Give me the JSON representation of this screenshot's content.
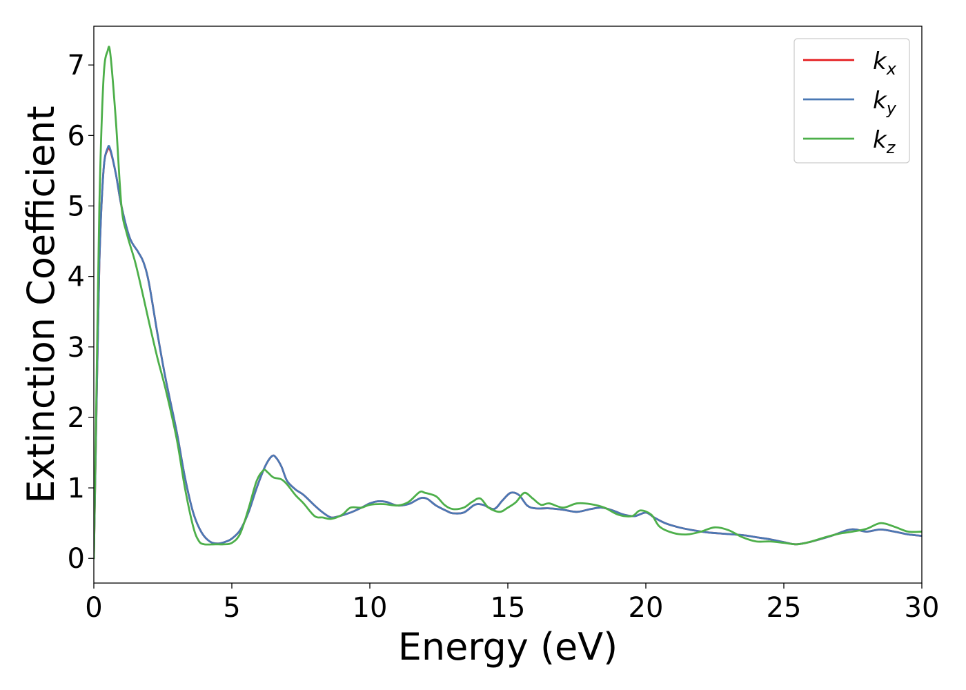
{
  "chart_data": {
    "type": "line",
    "xlabel": "Energy (eV)",
    "ylabel": "Extinction Coefficient",
    "xlim": [
      0,
      30
    ],
    "ylim": [
      -0.35,
      7.55
    ],
    "xticks": [
      0,
      5,
      10,
      15,
      20,
      25,
      30
    ],
    "yticks": [
      0,
      1,
      2,
      3,
      4,
      5,
      6,
      7
    ],
    "grid": false,
    "legend_position": "top-right",
    "series": [
      {
        "name": "k",
        "subscript": "x",
        "color": "#e41a1c",
        "points": [
          [
            0,
            0.0
          ],
          [
            0.1,
            2.2
          ],
          [
            0.2,
            4.2
          ],
          [
            0.35,
            5.5
          ],
          [
            0.5,
            5.8
          ],
          [
            0.6,
            5.78
          ],
          [
            0.8,
            5.45
          ],
          [
            1.0,
            5.0
          ],
          [
            1.3,
            4.55
          ],
          [
            1.6,
            4.35
          ],
          [
            1.8,
            4.2
          ],
          [
            2.0,
            3.9
          ],
          [
            2.3,
            3.2
          ],
          [
            2.6,
            2.55
          ],
          [
            3.0,
            1.8
          ],
          [
            3.3,
            1.15
          ],
          [
            3.6,
            0.65
          ],
          [
            3.9,
            0.37
          ],
          [
            4.2,
            0.24
          ],
          [
            4.5,
            0.21
          ],
          [
            4.8,
            0.24
          ],
          [
            5.0,
            0.28
          ],
          [
            5.3,
            0.4
          ],
          [
            5.6,
            0.65
          ],
          [
            5.9,
            1.0
          ],
          [
            6.2,
            1.3
          ],
          [
            6.45,
            1.45
          ],
          [
            6.6,
            1.43
          ],
          [
            6.8,
            1.3
          ],
          [
            7.0,
            1.1
          ],
          [
            7.3,
            0.98
          ],
          [
            7.6,
            0.9
          ],
          [
            8.0,
            0.75
          ],
          [
            8.3,
            0.65
          ],
          [
            8.6,
            0.58
          ],
          [
            8.9,
            0.6
          ],
          [
            9.3,
            0.65
          ],
          [
            9.7,
            0.72
          ],
          [
            10.0,
            0.78
          ],
          [
            10.3,
            0.81
          ],
          [
            10.6,
            0.8
          ],
          [
            11.0,
            0.75
          ],
          [
            11.4,
            0.77
          ],
          [
            11.7,
            0.83
          ],
          [
            11.9,
            0.86
          ],
          [
            12.1,
            0.84
          ],
          [
            12.4,
            0.75
          ],
          [
            12.8,
            0.67
          ],
          [
            13.0,
            0.64
          ],
          [
            13.4,
            0.65
          ],
          [
            13.8,
            0.76
          ],
          [
            14.1,
            0.76
          ],
          [
            14.5,
            0.7
          ],
          [
            14.8,
            0.82
          ],
          [
            15.1,
            0.93
          ],
          [
            15.4,
            0.9
          ],
          [
            15.7,
            0.75
          ],
          [
            16.0,
            0.71
          ],
          [
            16.5,
            0.71
          ],
          [
            17.0,
            0.69
          ],
          [
            17.5,
            0.66
          ],
          [
            18.0,
            0.7
          ],
          [
            18.4,
            0.72
          ],
          [
            18.8,
            0.68
          ],
          [
            19.2,
            0.62
          ],
          [
            19.6,
            0.6
          ],
          [
            20.0,
            0.65
          ],
          [
            20.3,
            0.58
          ],
          [
            20.7,
            0.5
          ],
          [
            21.2,
            0.44
          ],
          [
            21.7,
            0.4
          ],
          [
            22.2,
            0.37
          ],
          [
            22.8,
            0.35
          ],
          [
            23.5,
            0.33
          ],
          [
            24.0,
            0.3
          ],
          [
            24.5,
            0.27
          ],
          [
            25.0,
            0.23
          ],
          [
            25.4,
            0.2
          ],
          [
            25.8,
            0.22
          ],
          [
            26.3,
            0.27
          ],
          [
            26.8,
            0.33
          ],
          [
            27.3,
            0.4
          ],
          [
            27.6,
            0.41
          ],
          [
            28.0,
            0.38
          ],
          [
            28.5,
            0.41
          ],
          [
            29.0,
            0.38
          ],
          [
            29.5,
            0.34
          ],
          [
            30.0,
            0.32
          ]
        ]
      },
      {
        "name": "k",
        "subscript": "y",
        "color": "#4a78b4",
        "points": [
          [
            0,
            0.0
          ],
          [
            0.1,
            2.2
          ],
          [
            0.2,
            4.2
          ],
          [
            0.35,
            5.5
          ],
          [
            0.5,
            5.82
          ],
          [
            0.6,
            5.8
          ],
          [
            0.8,
            5.45
          ],
          [
            1.0,
            5.0
          ],
          [
            1.3,
            4.55
          ],
          [
            1.6,
            4.35
          ],
          [
            1.8,
            4.2
          ],
          [
            2.0,
            3.9
          ],
          [
            2.3,
            3.2
          ],
          [
            2.6,
            2.55
          ],
          [
            3.0,
            1.8
          ],
          [
            3.3,
            1.15
          ],
          [
            3.6,
            0.65
          ],
          [
            3.9,
            0.37
          ],
          [
            4.2,
            0.24
          ],
          [
            4.5,
            0.21
          ],
          [
            4.8,
            0.24
          ],
          [
            5.0,
            0.28
          ],
          [
            5.3,
            0.4
          ],
          [
            5.6,
            0.65
          ],
          [
            5.9,
            1.0
          ],
          [
            6.2,
            1.3
          ],
          [
            6.45,
            1.45
          ],
          [
            6.6,
            1.43
          ],
          [
            6.8,
            1.3
          ],
          [
            7.0,
            1.1
          ],
          [
            7.3,
            0.98
          ],
          [
            7.6,
            0.9
          ],
          [
            8.0,
            0.75
          ],
          [
            8.3,
            0.65
          ],
          [
            8.6,
            0.58
          ],
          [
            8.9,
            0.6
          ],
          [
            9.3,
            0.65
          ],
          [
            9.7,
            0.72
          ],
          [
            10.0,
            0.78
          ],
          [
            10.3,
            0.81
          ],
          [
            10.6,
            0.8
          ],
          [
            11.0,
            0.75
          ],
          [
            11.4,
            0.77
          ],
          [
            11.7,
            0.83
          ],
          [
            11.9,
            0.86
          ],
          [
            12.1,
            0.84
          ],
          [
            12.4,
            0.75
          ],
          [
            12.8,
            0.67
          ],
          [
            13.0,
            0.64
          ],
          [
            13.4,
            0.65
          ],
          [
            13.8,
            0.76
          ],
          [
            14.1,
            0.76
          ],
          [
            14.5,
            0.7
          ],
          [
            14.8,
            0.82
          ],
          [
            15.1,
            0.93
          ],
          [
            15.4,
            0.9
          ],
          [
            15.7,
            0.75
          ],
          [
            16.0,
            0.71
          ],
          [
            16.5,
            0.71
          ],
          [
            17.0,
            0.69
          ],
          [
            17.5,
            0.66
          ],
          [
            18.0,
            0.7
          ],
          [
            18.4,
            0.72
          ],
          [
            18.8,
            0.68
          ],
          [
            19.2,
            0.62
          ],
          [
            19.6,
            0.6
          ],
          [
            20.0,
            0.65
          ],
          [
            20.3,
            0.58
          ],
          [
            20.7,
            0.5
          ],
          [
            21.2,
            0.44
          ],
          [
            21.7,
            0.4
          ],
          [
            22.2,
            0.37
          ],
          [
            22.8,
            0.35
          ],
          [
            23.5,
            0.33
          ],
          [
            24.0,
            0.3
          ],
          [
            24.5,
            0.27
          ],
          [
            25.0,
            0.23
          ],
          [
            25.4,
            0.2
          ],
          [
            25.8,
            0.22
          ],
          [
            26.3,
            0.27
          ],
          [
            26.8,
            0.33
          ],
          [
            27.3,
            0.4
          ],
          [
            27.6,
            0.41
          ],
          [
            28.0,
            0.38
          ],
          [
            28.5,
            0.41
          ],
          [
            29.0,
            0.38
          ],
          [
            29.5,
            0.34
          ],
          [
            30.0,
            0.32
          ]
        ]
      },
      {
        "name": "k",
        "subscript": "z",
        "color": "#4daf4a",
        "points": [
          [
            0,
            0.0
          ],
          [
            0.1,
            2.5
          ],
          [
            0.2,
            5.0
          ],
          [
            0.35,
            6.8
          ],
          [
            0.5,
            7.2
          ],
          [
            0.6,
            7.15
          ],
          [
            0.8,
            6.2
          ],
          [
            1.0,
            5.0
          ],
          [
            1.2,
            4.6
          ],
          [
            1.5,
            4.2
          ],
          [
            1.8,
            3.7
          ],
          [
            2.0,
            3.35
          ],
          [
            2.3,
            2.85
          ],
          [
            2.6,
            2.4
          ],
          [
            3.0,
            1.7
          ],
          [
            3.3,
            1.0
          ],
          [
            3.6,
            0.45
          ],
          [
            3.8,
            0.25
          ],
          [
            4.0,
            0.2
          ],
          [
            4.4,
            0.2
          ],
          [
            4.7,
            0.2
          ],
          [
            5.0,
            0.22
          ],
          [
            5.3,
            0.35
          ],
          [
            5.6,
            0.7
          ],
          [
            5.9,
            1.1
          ],
          [
            6.15,
            1.25
          ],
          [
            6.3,
            1.22
          ],
          [
            6.5,
            1.15
          ],
          [
            6.8,
            1.12
          ],
          [
            7.0,
            1.05
          ],
          [
            7.3,
            0.9
          ],
          [
            7.6,
            0.78
          ],
          [
            8.0,
            0.6
          ],
          [
            8.3,
            0.58
          ],
          [
            8.6,
            0.56
          ],
          [
            9.0,
            0.62
          ],
          [
            9.3,
            0.72
          ],
          [
            9.7,
            0.72
          ],
          [
            10.0,
            0.76
          ],
          [
            10.5,
            0.77
          ],
          [
            11.0,
            0.75
          ],
          [
            11.4,
            0.8
          ],
          [
            11.8,
            0.94
          ],
          [
            12.0,
            0.93
          ],
          [
            12.4,
            0.88
          ],
          [
            12.7,
            0.76
          ],
          [
            13.0,
            0.7
          ],
          [
            13.4,
            0.72
          ],
          [
            13.7,
            0.8
          ],
          [
            14.0,
            0.85
          ],
          [
            14.3,
            0.72
          ],
          [
            14.7,
            0.66
          ],
          [
            15.0,
            0.72
          ],
          [
            15.3,
            0.8
          ],
          [
            15.6,
            0.93
          ],
          [
            15.9,
            0.85
          ],
          [
            16.2,
            0.76
          ],
          [
            16.5,
            0.78
          ],
          [
            17.0,
            0.72
          ],
          [
            17.5,
            0.78
          ],
          [
            18.0,
            0.77
          ],
          [
            18.5,
            0.72
          ],
          [
            19.0,
            0.62
          ],
          [
            19.5,
            0.6
          ],
          [
            19.8,
            0.68
          ],
          [
            20.2,
            0.62
          ],
          [
            20.5,
            0.45
          ],
          [
            21.0,
            0.36
          ],
          [
            21.5,
            0.34
          ],
          [
            22.0,
            0.38
          ],
          [
            22.5,
            0.44
          ],
          [
            23.0,
            0.4
          ],
          [
            23.5,
            0.3
          ],
          [
            24.0,
            0.24
          ],
          [
            24.5,
            0.24
          ],
          [
            25.0,
            0.22
          ],
          [
            25.5,
            0.2
          ],
          [
            26.0,
            0.24
          ],
          [
            26.5,
            0.3
          ],
          [
            27.0,
            0.35
          ],
          [
            27.5,
            0.38
          ],
          [
            28.0,
            0.42
          ],
          [
            28.5,
            0.5
          ],
          [
            29.0,
            0.45
          ],
          [
            29.5,
            0.38
          ],
          [
            30.0,
            0.38
          ]
        ]
      }
    ]
  }
}
